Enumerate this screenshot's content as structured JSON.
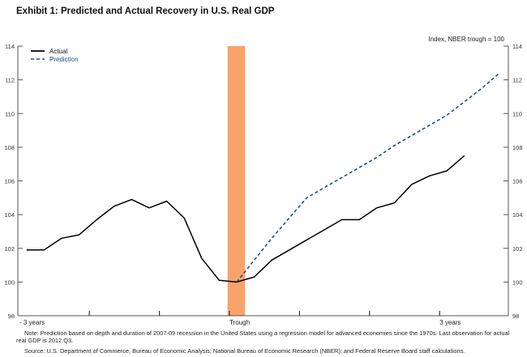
{
  "chart_data": {
    "type": "line",
    "title": "Exhibit 1: Predicted and Actual Recovery in U.S. Real GDP",
    "units_label": "Index, NBER trough = 100",
    "xlabel": "",
    "ylabel": "Index, NBER trough = 100",
    "ylim": [
      98,
      114
    ],
    "yticks": [
      98,
      100,
      102,
      104,
      106,
      108,
      110,
      112,
      114
    ],
    "xlim_quarters": [
      -12.5,
      16
    ],
    "xticks": [
      {
        "q": -12,
        "label": "- 3 years"
      },
      {
        "q": -8,
        "label": ""
      },
      {
        "q": -4,
        "label": ""
      },
      {
        "q": 0,
        "label": "Trough"
      },
      {
        "q": 4,
        "label": ""
      },
      {
        "q": 8,
        "label": ""
      },
      {
        "q": 12,
        "label": "3 years"
      }
    ],
    "recession_shade": {
      "start_q": -0.5,
      "end_q": 0.5,
      "color": "#F9A36A"
    },
    "grid": false,
    "legend_position": "top-left",
    "series": [
      {
        "name": "Actual",
        "color": "#000000",
        "style": "solid",
        "x": [
          -12,
          -11,
          -10,
          -9,
          -8,
          -7,
          -6,
          -5,
          -4,
          -3,
          -2,
          -1,
          0,
          1,
          2,
          3,
          4,
          5,
          6,
          7,
          8,
          9,
          10,
          11,
          12,
          13
        ],
        "values": [
          101.9,
          101.9,
          102.6,
          102.8,
          103.7,
          104.5,
          104.9,
          104.4,
          104.8,
          103.8,
          101.4,
          100.1,
          100.0,
          100.3,
          101.3,
          101.9,
          102.5,
          103.1,
          103.7,
          103.7,
          104.4,
          104.7,
          105.8,
          106.3,
          106.6,
          107.5
        ]
      },
      {
        "name": "Prediction",
        "color": "#1F4E8C",
        "style": "dashed",
        "x": [
          0,
          1,
          2,
          3,
          4,
          5,
          6,
          7,
          8,
          9,
          10,
          11,
          12,
          13,
          14,
          15
        ],
        "values": [
          100.0,
          101.3,
          102.6,
          103.8,
          105.0,
          105.6,
          106.2,
          106.8,
          107.4,
          108.1,
          108.7,
          109.3,
          109.9,
          110.7,
          111.5,
          112.4
        ]
      }
    ]
  },
  "note": "Note: Prediction based on depth and duration of 2007-09 recession in the United States using a regression model for advanced economies since the 1970s. Last observation for actual real GDP is 2012:Q3.",
  "source": "Source: U.S. Department of Commerce, Bureau of Economic Analysis; National Bureau of Economic Research (NBER); and Federal Reserve Board staff calculations."
}
